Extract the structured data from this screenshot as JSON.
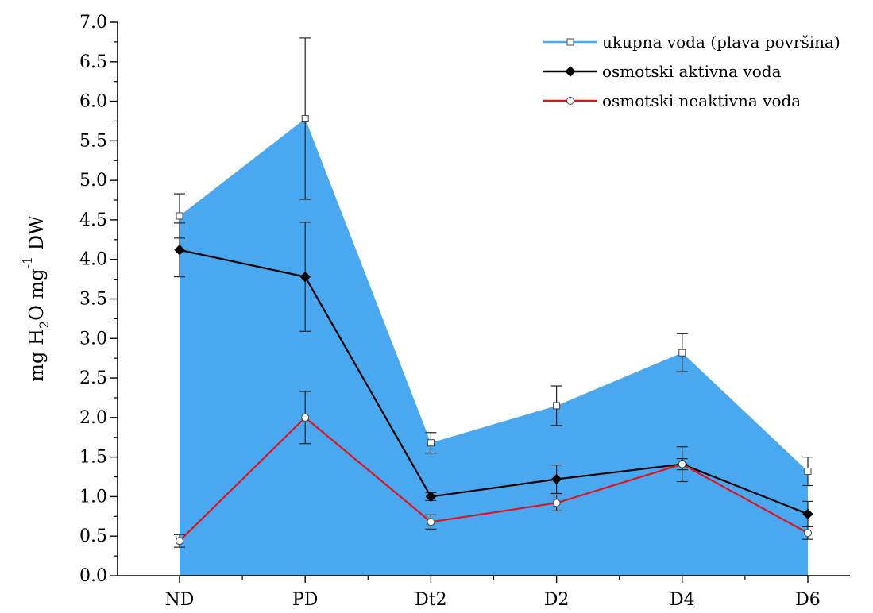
{
  "chart_data": {
    "type": "line",
    "categories": [
      "ND",
      "PD",
      "Dt2",
      "D2",
      "D4",
      "D6"
    ],
    "ylabel": "mg H₂O mg⁻¹ DW",
    "ylabel_parts": [
      "mg H",
      "2",
      "O mg",
      "-1",
      " DW"
    ],
    "ylim": [
      0,
      7
    ],
    "yticks": [
      "0.0",
      "0.5",
      "1.0",
      "1.5",
      "2.0",
      "2.5",
      "3.0",
      "3.5",
      "4.0",
      "4.5",
      "5.0",
      "5.5",
      "6.0",
      "6.5",
      "7.0"
    ],
    "grid": false,
    "legend_position": "top-right",
    "series": [
      {
        "name": "ukupna voda (plava površina)",
        "style": "area",
        "marker": "square-open",
        "color": "#4aa8f0",
        "values": [
          4.55,
          5.78,
          1.68,
          2.15,
          2.82,
          1.32
        ],
        "errors": [
          0.28,
          1.02,
          0.13,
          0.25,
          0.24,
          0.18
        ]
      },
      {
        "name": "osmotski aktivna voda",
        "style": "line",
        "marker": "diamond-filled",
        "color": "#000000",
        "values": [
          4.12,
          3.78,
          1.0,
          1.22,
          1.41,
          0.78
        ],
        "errors": [
          0.34,
          0.69,
          0.05,
          0.18,
          0.22,
          0.16
        ]
      },
      {
        "name": "osmotski neaktivna voda",
        "style": "line",
        "marker": "circle-open",
        "color": "#e0141e",
        "values": [
          0.44,
          2.0,
          0.68,
          0.92,
          1.41,
          0.54
        ],
        "errors": [
          0.08,
          0.33,
          0.09,
          0.1,
          0.07,
          0.08
        ]
      }
    ]
  }
}
